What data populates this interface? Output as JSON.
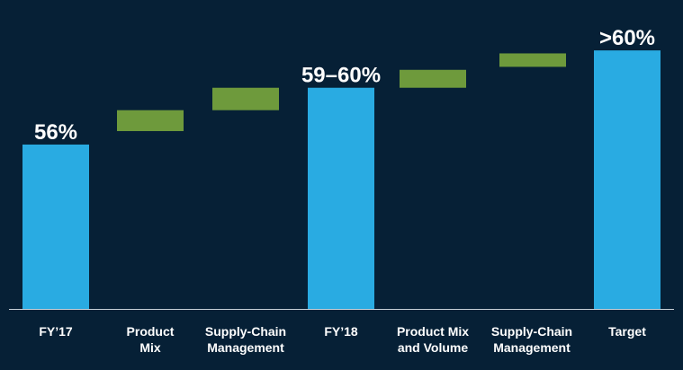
{
  "chart_data": {
    "type": "bar",
    "subtype": "waterfall",
    "title": "",
    "xlabel": "",
    "ylabel": "",
    "ylim": [
      45,
      61.6
    ],
    "gridlines": false,
    "categories": [
      [
        "FY’17"
      ],
      [
        "Product",
        "Mix"
      ],
      [
        "Supply-Chain",
        "Management"
      ],
      [
        "FY’18"
      ],
      [
        "Product Mix",
        "and Volume"
      ],
      [
        "Supply-Chain",
        "Management"
      ],
      [
        "Target"
      ]
    ],
    "bars": [
      {
        "kind": "total",
        "start": 45,
        "end": 56.0,
        "label": "56%"
      },
      {
        "kind": "increase",
        "start": 56.9,
        "end": 58.3,
        "label": ""
      },
      {
        "kind": "increase",
        "start": 58.3,
        "end": 59.8,
        "label": ""
      },
      {
        "kind": "total",
        "start": 45,
        "end": 59.8,
        "label": "59–60%"
      },
      {
        "kind": "increase",
        "start": 59.8,
        "end": 61.0,
        "label": ""
      },
      {
        "kind": "increase",
        "start": 61.2,
        "end": 62.1,
        "label": ""
      },
      {
        "kind": "total",
        "start": 45,
        "end": 62.3,
        "label": ">60%"
      }
    ],
    "colors": {
      "background": "#062036",
      "total": "#29abe2",
      "increase": "#6e9a3c",
      "axis": "#c8d0d8",
      "text": "#ffffff"
    }
  }
}
